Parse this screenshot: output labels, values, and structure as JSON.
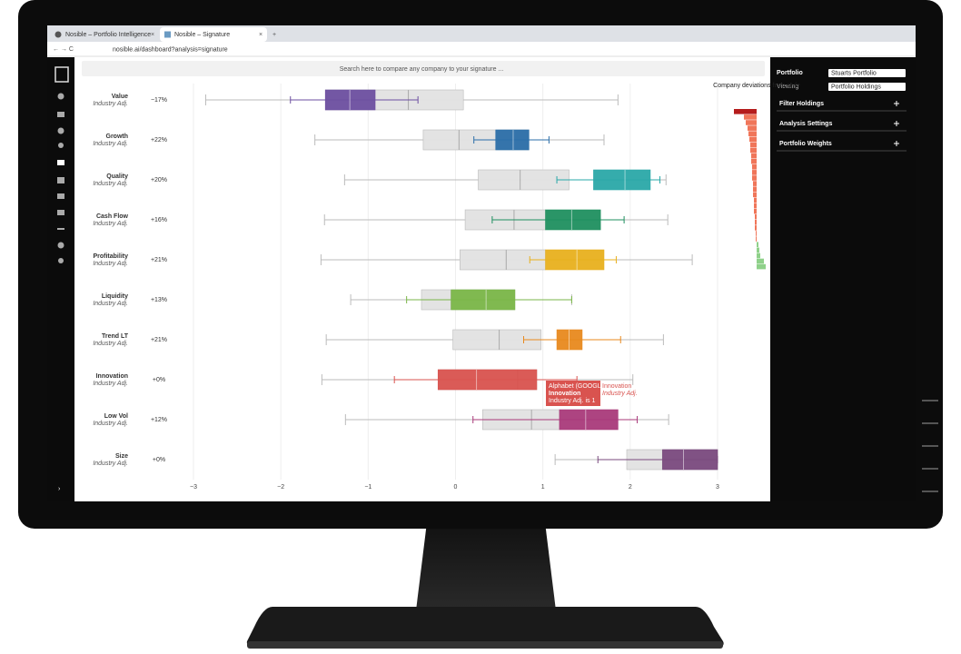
{
  "browser": {
    "tabs": [
      "Nosible – Portfolio Intelligence",
      "Nosible – Signature"
    ],
    "url": "nosible.ai/dashboard?analysis=signature"
  },
  "app": {
    "search_placeholder": "Search here to compare any company to your signature ...",
    "panel": {
      "portfolio_label": "Portfolio",
      "portfolio": "Stuarts Portfolio",
      "viewing_label": "Viewing",
      "viewing": "Portfolio Holdings",
      "sections": [
        "Filter Holdings",
        "Analysis Settings",
        "Portfolio Weights"
      ]
    },
    "deviations_title": "Company deviations from style",
    "deviations": [
      -25,
      -14,
      -12,
      -10,
      -9,
      -8,
      -7,
      -7,
      -6,
      -6,
      -5,
      -5,
      -5,
      -4,
      -4,
      -4,
      -3,
      -3,
      -3,
      -2,
      -2,
      -2,
      -1,
      -1,
      2,
      3,
      4,
      8,
      10
    ]
  },
  "chart_data": {
    "type": "box",
    "xlim": [
      -3,
      3
    ],
    "xticks": [
      {
        "value": -3,
        "label": "−3"
      },
      {
        "value": -2,
        "label": "−2"
      },
      {
        "value": -1,
        "label": "−1"
      },
      0,
      1,
      2,
      3
    ],
    "grid": true,
    "factors": [
      {
        "name": "Value",
        "sublabel": "Industry Adj.",
        "change": "−17%",
        "color": "#6d4fa0",
        "universe": {
          "low": -2.86,
          "q1": -1.49,
          "median": -0.54,
          "q3": 0.09,
          "high": 1.86
        },
        "portfolio": {
          "low": -1.89,
          "q1": -1.49,
          "median": -1.21,
          "q3": -0.92,
          "high": -0.43
        }
      },
      {
        "name": "Growth",
        "sublabel": "Industry Adj.",
        "change": "+22%",
        "color": "#2b6ea8",
        "universe": {
          "low": -1.61,
          "q1": -0.37,
          "median": 0.04,
          "q3": 0.84,
          "high": 1.7
        },
        "portfolio": {
          "low": 0.21,
          "q1": 0.46,
          "median": 0.66,
          "q3": 0.84,
          "high": 1.07
        }
      },
      {
        "name": "Quality",
        "sublabel": "Industry Adj.",
        "change": "+20%",
        "color": "#2aa8a8",
        "universe": {
          "low": -1.27,
          "q1": 0.26,
          "median": 0.74,
          "q3": 1.3,
          "high": 2.41
        },
        "portfolio": {
          "low": 1.16,
          "q1": 1.58,
          "median": 1.94,
          "q3": 2.23,
          "high": 2.34
        }
      },
      {
        "name": "Cash Flow",
        "sublabel": "Industry Adj.",
        "change": "+16%",
        "color": "#1f8f5f",
        "universe": {
          "low": -1.5,
          "q1": 0.11,
          "median": 0.67,
          "q3": 1.03,
          "high": 2.43
        },
        "portfolio": {
          "low": 0.42,
          "q1": 1.03,
          "median": 1.33,
          "q3": 1.66,
          "high": 1.93
        }
      },
      {
        "name": "Profitability",
        "sublabel": "Industry Adj.",
        "change": "+21%",
        "color": "#e8b01e",
        "universe": {
          "low": -1.54,
          "q1": 0.05,
          "median": 0.58,
          "q3": 1.03,
          "high": 2.71
        },
        "portfolio": {
          "low": 0.85,
          "q1": 1.03,
          "median": 1.39,
          "q3": 1.7,
          "high": 1.84
        }
      },
      {
        "name": "Liquidity",
        "sublabel": "Industry Adj.",
        "change": "+13%",
        "color": "#7ab648",
        "universe": {
          "low": -1.2,
          "q1": -0.39,
          "median": -0.05,
          "q3": 0.68,
          "high": 1.33
        },
        "portfolio": {
          "low": -0.56,
          "q1": -0.05,
          "median": 0.35,
          "q3": 0.68,
          "high": 1.33
        }
      },
      {
        "name": "Trend LT",
        "sublabel": "Industry Adj.",
        "change": "+21%",
        "color": "#e8891e",
        "universe": {
          "low": -1.48,
          "q1": -0.03,
          "median": 0.5,
          "q3": 0.98,
          "high": 2.38
        },
        "portfolio": {
          "low": 0.78,
          "q1": 1.16,
          "median": 1.3,
          "q3": 1.45,
          "high": 1.89
        }
      },
      {
        "name": "Innovation",
        "sublabel": "Industry Adj.",
        "change": "+0%",
        "color": "#d9534f",
        "universe": {
          "low": -1.53,
          "q1": -0.2,
          "median": 0.71,
          "q3": 0.93,
          "high": 2.03
        },
        "portfolio": {
          "low": -0.7,
          "q1": -0.2,
          "median": 0.24,
          "q3": 0.93,
          "high": 1.39
        }
      },
      {
        "name": "Low Vol",
        "sublabel": "Industry Adj.",
        "change": "+12%",
        "color": "#a93a7a",
        "universe": {
          "low": -1.26,
          "q1": 0.31,
          "median": 0.87,
          "q3": 1.19,
          "high": 2.44
        },
        "portfolio": {
          "low": 0.2,
          "q1": 1.19,
          "median": 1.49,
          "q3": 1.86,
          "high": 2.08
        }
      },
      {
        "name": "Size",
        "sublabel": "Industry Adj.",
        "change": "+0%",
        "color": "#7a4a7e",
        "universe": {
          "low": 1.14,
          "q1": 1.96,
          "median": 2.37,
          "q3": 3,
          "high": 3
        },
        "portfolio": {
          "low": 1.63,
          "q1": 2.37,
          "median": 2.61,
          "q3": 3,
          "high": 3
        }
      }
    ],
    "tooltip": {
      "company": "Alphabet (GOOGL)",
      "factor": "Innovation",
      "detail": "Industry Adj. is 1",
      "side_factor": "Innovation",
      "side_sub": "Industry Adj."
    }
  }
}
